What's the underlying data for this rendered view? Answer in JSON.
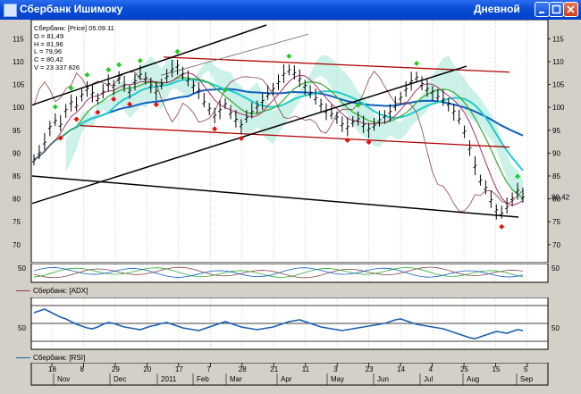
{
  "window": {
    "title": "Сбербанк Ишимоку",
    "period": "Дневной"
  },
  "ohlc": {
    "header": "Сбербанк: [Price] 05.09.11",
    "open": "O = 81,49",
    "high": "H = 81,96",
    "low": "L = 79,96",
    "close": "C = 80,42",
    "volume": "V = 23 337 826"
  },
  "price_axis": {
    "ticks": [
      "115",
      "110",
      "105",
      "100",
      "95",
      "90",
      "85",
      "80",
      "75",
      "70"
    ],
    "last_price_label": "80,42"
  },
  "adx": {
    "legend": "Сбербанк: [ADX]",
    "tick_left": "50",
    "tick_right": "50"
  },
  "rsi": {
    "legend": "Сбербанк: [RSI]",
    "tick_left": "50",
    "tick_right": "50"
  },
  "time_axis": {
    "days": [
      "18",
      "8",
      "29",
      "20",
      "17",
      "7",
      "28",
      "21",
      "11",
      "3",
      "23",
      "14",
      "4",
      "25",
      "15",
      "5"
    ],
    "months": [
      "Nov",
      "Dec",
      "2011",
      "Feb",
      "Mar",
      "Apr",
      "May",
      "Jun",
      "Jul",
      "Aug",
      "Sep"
    ]
  },
  "colors": {
    "price_bar": "#000000",
    "red_channel": "#b00000",
    "black_trend": "#000000",
    "kumo_fill": "#a8e8d8",
    "tenkan": "#33aa33",
    "kijun": "#aa3366",
    "chikou": "#884444",
    "sma_cyan": "#22cccc",
    "sma_blue": "#1060c0",
    "rsi_line": "#1a5fb0",
    "up_marker": "#22cc22",
    "down_marker": "#e81010"
  },
  "chart_data": {
    "type": "line",
    "title": "Сбербанк: [Price] 05.09.11",
    "y_range": [
      68,
      118
    ],
    "x_labels_days": [
      "18",
      "8",
      "29",
      "20",
      "17",
      "7",
      "28",
      "21",
      "11",
      "3",
      "23",
      "14",
      "4",
      "25",
      "15",
      "5"
    ],
    "x_labels_months": [
      "Nov",
      "Dec",
      "2011",
      "Feb",
      "Mar",
      "Apr",
      "May",
      "Jun",
      "Jul",
      "Aug",
      "Sep"
    ],
    "series": [
      {
        "name": "Price",
        "values": [
          88.5,
          90.2,
          92.4,
          95.8,
          97.1,
          96.3,
          99.5,
          101.2,
          100.4,
          102.8,
          104.1,
          103.2,
          101.9,
          103.5,
          105.2,
          104.8,
          106.3,
          104.9,
          103.7,
          105.8,
          107.2,
          106.5,
          104.9,
          103.6,
          105.1,
          106.8,
          108.4,
          109.2,
          107.3,
          106.1,
          104.8,
          103.9,
          101.2,
          99.8,
          98.3,
          99.5,
          100.8,
          98.9,
          97.4,
          96.2,
          97.8,
          99.1,
          100.3,
          101.5,
          102.8,
          104.1,
          105.6,
          107.4,
          108.2,
          107.6,
          106.3,
          104.8,
          103.2,
          102.1,
          100.7,
          99.3,
          98.6,
          97.9,
          96.4,
          95.8,
          96.9,
          97.5,
          96.2,
          95.4,
          96.1,
          97.3,
          98.2,
          99.1,
          100.4,
          102.2,
          104.1,
          105.8,
          106.6,
          105.2,
          104.1,
          103.5,
          102.4,
          101.8,
          100.9,
          99.2,
          97.5,
          94.8,
          91.2,
          87.3,
          84.1,
          82.5,
          79.8,
          77.6,
          76.9,
          78.3,
          80.2,
          81.9,
          80.42
        ]
      },
      {
        "name": "RSI",
        "values": [
          62,
          64,
          66,
          63,
          60,
          57,
          55,
          52,
          49,
          47,
          45,
          44,
          46,
          49,
          51,
          50,
          48,
          46,
          45,
          44,
          43,
          45,
          47,
          48,
          50,
          51,
          49,
          47,
          45,
          44,
          43,
          42,
          44,
          46,
          48,
          50,
          52,
          50,
          48,
          46,
          45,
          44,
          43,
          44,
          45,
          46,
          48,
          50,
          52,
          53,
          54,
          52,
          50,
          48,
          46,
          45,
          44,
          43,
          42,
          43,
          44,
          45,
          46,
          47,
          48,
          49,
          50,
          52,
          54,
          55,
          53,
          51,
          49,
          48,
          47,
          46,
          45,
          44,
          42,
          40,
          38,
          36,
          34,
          33,
          35,
          37,
          39,
          41,
          40,
          39,
          41,
          43,
          42
        ]
      }
    ],
    "rsi_range": [
      0,
      100
    ],
    "rsi_levels": [
      30,
      50,
      70
    ]
  }
}
